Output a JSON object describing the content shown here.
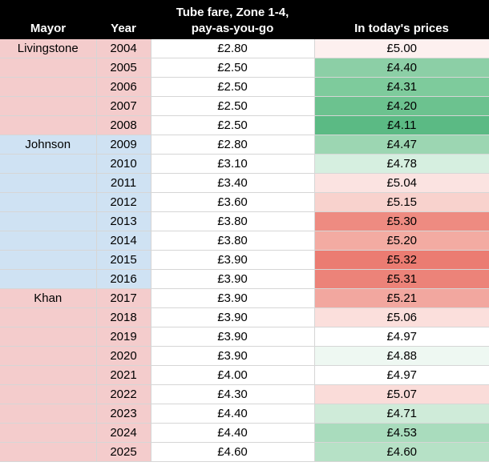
{
  "headers": {
    "mayor": "Mayor",
    "year": "Year",
    "fare_line1": "Tube fare, Zone 1-4,",
    "fare_line2": "pay-as-you-go",
    "today": "In today's prices"
  },
  "colors": {
    "livingstone": "#f4cccc",
    "johnson": "#cfe2f3",
    "khan": "#f4cccc"
  },
  "rows": [
    {
      "mayor": "Livingstone",
      "mayor_key": "livingstone",
      "year": "2004",
      "fare": "£2.80",
      "today": "£5.00",
      "today_color": "#fdf0ef"
    },
    {
      "mayor": "",
      "mayor_key": "livingstone",
      "year": "2005",
      "fare": "£2.50",
      "today": "£4.40",
      "today_color": "#8ccfa6"
    },
    {
      "mayor": "",
      "mayor_key": "livingstone",
      "year": "2006",
      "fare": "£2.50",
      "today": "£4.31",
      "today_color": "#7ecb9c"
    },
    {
      "mayor": "",
      "mayor_key": "livingstone",
      "year": "2007",
      "fare": "£2.50",
      "today": "£4.20",
      "today_color": "#6cc28f"
    },
    {
      "mayor": "",
      "mayor_key": "livingstone",
      "year": "2008",
      "fare": "£2.50",
      "today": "£4.11",
      "today_color": "#5bba84"
    },
    {
      "mayor": "Johnson",
      "mayor_key": "johnson",
      "year": "2009",
      "fare": "£2.80",
      "today": "£4.47",
      "today_color": "#9cd6b2"
    },
    {
      "mayor": "",
      "mayor_key": "johnson",
      "year": "2010",
      "fare": "£3.10",
      "today": "£4.78",
      "today_color": "#d6efe0"
    },
    {
      "mayor": "",
      "mayor_key": "johnson",
      "year": "2011",
      "fare": "£3.40",
      "today": "£5.04",
      "today_color": "#fbe3e1"
    },
    {
      "mayor": "",
      "mayor_key": "johnson",
      "year": "2012",
      "fare": "£3.60",
      "today": "£5.15",
      "today_color": "#f8d2cd"
    },
    {
      "mayor": "",
      "mayor_key": "johnson",
      "year": "2013",
      "fare": "£3.80",
      "today": "£5.30",
      "today_color": "#ee8b81"
    },
    {
      "mayor": "",
      "mayor_key": "johnson",
      "year": "2014",
      "fare": "£3.80",
      "today": "£5.20",
      "today_color": "#f3aba2"
    },
    {
      "mayor": "",
      "mayor_key": "johnson",
      "year": "2015",
      "fare": "£3.90",
      "today": "£5.32",
      "today_color": "#eb7c72"
    },
    {
      "mayor": "",
      "mayor_key": "johnson",
      "year": "2016",
      "fare": "£3.90",
      "today": "£5.31",
      "today_color": "#ec8379"
    },
    {
      "mayor": "Khan",
      "mayor_key": "khan",
      "year": "2017",
      "fare": "£3.90",
      "today": "£5.21",
      "today_color": "#f2a79f"
    },
    {
      "mayor": "",
      "mayor_key": "khan",
      "year": "2018",
      "fare": "£3.90",
      "today": "£5.06",
      "today_color": "#fbdfdc"
    },
    {
      "mayor": "",
      "mayor_key": "khan",
      "year": "2019",
      "fare": "£3.90",
      "today": "£4.97",
      "today_color": "#ffffff"
    },
    {
      "mayor": "",
      "mayor_key": "khan",
      "year": "2020",
      "fare": "£3.90",
      "today": "£4.88",
      "today_color": "#eef8f2"
    },
    {
      "mayor": "",
      "mayor_key": "khan",
      "year": "2021",
      "fare": "£4.00",
      "today": "£4.97",
      "today_color": "#ffffff"
    },
    {
      "mayor": "",
      "mayor_key": "khan",
      "year": "2022",
      "fare": "£4.30",
      "today": "£5.07",
      "today_color": "#fadcd9"
    },
    {
      "mayor": "",
      "mayor_key": "khan",
      "year": "2023",
      "fare": "£4.40",
      "today": "£4.71",
      "today_color": "#cfebd9"
    },
    {
      "mayor": "",
      "mayor_key": "khan",
      "year": "2024",
      "fare": "£4.40",
      "today": "£4.53",
      "today_color": "#a9dcbd"
    },
    {
      "mayor": "",
      "mayor_key": "khan",
      "year": "2025",
      "fare": "£4.60",
      "today": "£4.60",
      "today_color": "#b6e1c6"
    }
  ]
}
